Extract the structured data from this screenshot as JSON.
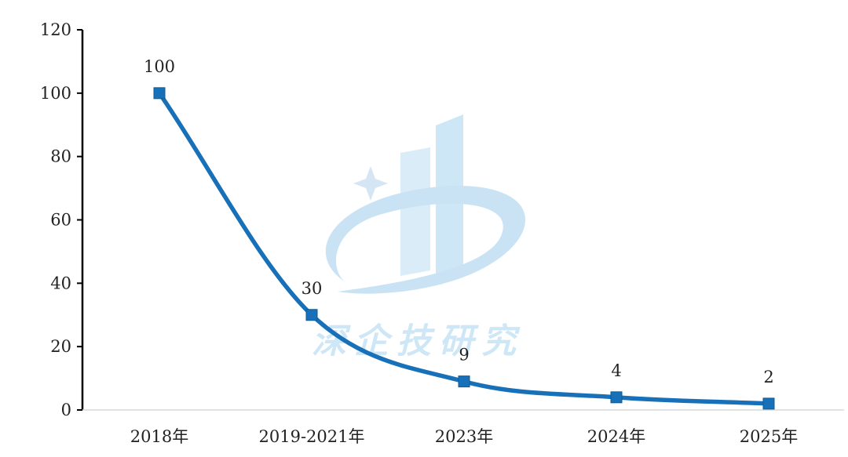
{
  "chart_data": {
    "type": "line",
    "categories": [
      "2018年",
      "2019-2021年",
      "2023年",
      "2024年",
      "2025年"
    ],
    "series": [
      {
        "values": [
          100,
          30,
          9,
          4,
          2
        ]
      }
    ],
    "data_labels": [
      "100",
      "30",
      "9",
      "4",
      "2"
    ],
    "yticks": [
      "0",
      "20",
      "40",
      "60",
      "80",
      "100",
      "120"
    ],
    "ylim": [
      0,
      120
    ],
    "grid": false,
    "line_color": "#1770B8",
    "marker": "square",
    "smooth": true
  },
  "watermark": {
    "text": "深企技研究",
    "color": "#8CC8EC"
  }
}
